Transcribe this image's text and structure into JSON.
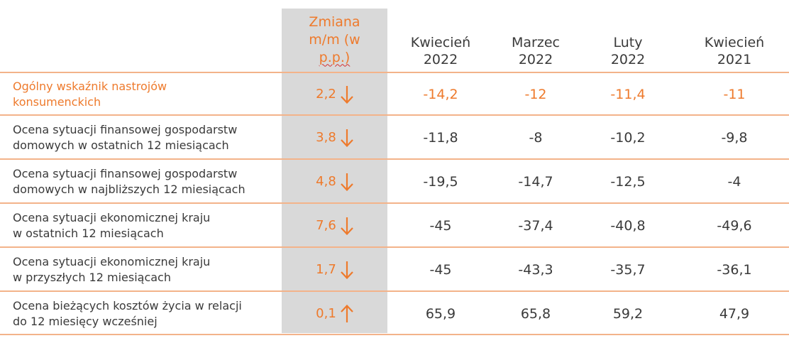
{
  "header": {
    "change_line1": "Zmiana",
    "change_line2": "m/m (w",
    "change_line3": "p.p.)",
    "cols": [
      {
        "line1": "Kwiecień",
        "line2": "2022"
      },
      {
        "line1": "Marzec",
        "line2": "2022"
      },
      {
        "line1": "Luty",
        "line2": "2022"
      },
      {
        "line1": "Kwiecień",
        "line2": "2021"
      }
    ]
  },
  "colors": {
    "accent": "#ee7a2c",
    "highlight_column": "#d9d9d9",
    "divider": "#f3b38a",
    "text": "#3a3a3a"
  },
  "rows": [
    {
      "label_line1": "Ogólny wskaźnik nastrojów",
      "label_line2": "konsumenckich",
      "change": "2,2",
      "direction_icon": "arrow-down-icon",
      "values": [
        "-14,2",
        "-12",
        "-11,4",
        "-11"
      ]
    },
    {
      "label_line1": "Ocena sytuacji finansowej gospodarstw",
      "label_line2": "domowych w ostatnich 12 miesiącach",
      "change": "3,8",
      "direction_icon": "arrow-down-icon",
      "values": [
        "-11,8",
        "-8",
        "-10,2",
        "-9,8"
      ]
    },
    {
      "label_line1": "Ocena sytuacji finansowej gospodarstw",
      "label_line2": "domowych w najbliższych 12 miesiącach",
      "change": "4,8",
      "direction_icon": "arrow-down-icon",
      "values": [
        "-19,5",
        "-14,7",
        "-12,5",
        "-4"
      ]
    },
    {
      "label_line1": "Ocena sytuacji ekonomicznej kraju",
      "label_line2": "w ostatnich 12 miesiącach",
      "change": "7,6",
      "direction_icon": "arrow-down-icon",
      "values": [
        "-45",
        "-37,4",
        "-40,8",
        "-49,6"
      ]
    },
    {
      "label_line1": "Ocena sytuacji ekonomicznej kraju",
      "label_line2": "w przyszłych 12 miesiącach",
      "change": "1,7",
      "direction_icon": "arrow-down-icon",
      "values": [
        "-45",
        "-43,3",
        "-35,7",
        "-36,1"
      ]
    },
    {
      "label_line1": "Ocena bieżących kosztów życia w relacji",
      "label_line2": "do 12 miesięcy wcześniej",
      "change": "0,1",
      "direction_icon": "arrow-up-icon",
      "values": [
        "65,9",
        "65,8",
        "59,2",
        "47,9"
      ]
    }
  ]
}
